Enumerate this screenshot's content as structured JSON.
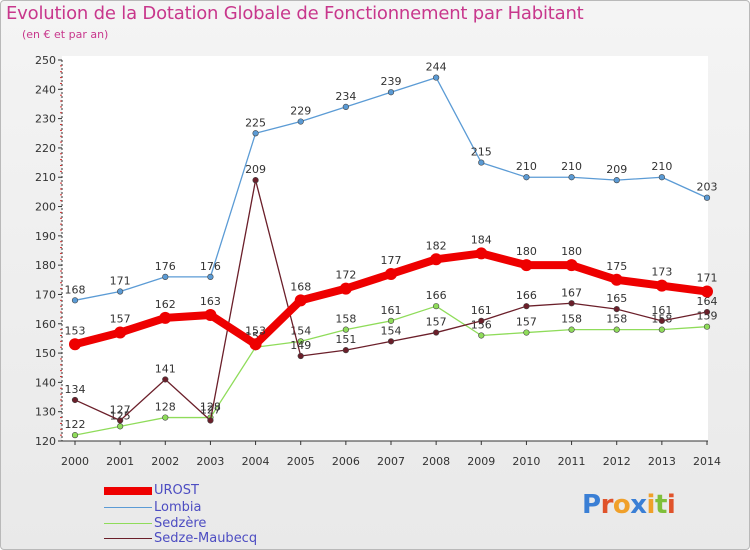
{
  "header": {
    "title": "Evolution de la Dotation Globale de Fonctionnement par Habitant",
    "subtitle": "(en € et par an)"
  },
  "logo": {
    "text": "Proxiti",
    "letter_colors": [
      "#3a7fd5",
      "#e0532b",
      "#f0a02a",
      "#3a7fd5",
      "#f0a02a",
      "#7fbf3a",
      "#e0532b"
    ]
  },
  "chart_data": {
    "type": "line",
    "x": [
      "2000",
      "2001",
      "2002",
      "2003",
      "2004",
      "2005",
      "2006",
      "2007",
      "2008",
      "2009",
      "2010",
      "2011",
      "2012",
      "2013",
      "2014"
    ],
    "ylim": [
      120,
      250
    ],
    "yticks": [
      120,
      130,
      140,
      150,
      160,
      170,
      180,
      190,
      200,
      210,
      220,
      230,
      240,
      250
    ],
    "grid": false,
    "legend_position": "bottom-left",
    "series": [
      {
        "name": "Lombia",
        "color": "#5b9bd5",
        "values": [
          168,
          171,
          176,
          176,
          225,
          229,
          234,
          239,
          244,
          215,
          210,
          210,
          209,
          210,
          203
        ],
        "labels": [
          "168",
          "171",
          "176",
          "176",
          "225",
          "229",
          "234",
          "239",
          "244",
          "215",
          "210",
          "210",
          "209",
          "210",
          "203"
        ]
      },
      {
        "name": "Sedzère",
        "color": "#8fdc5a",
        "values": [
          122,
          125,
          128,
          128,
          152,
          154,
          158,
          161,
          166,
          156,
          157,
          158,
          158,
          158,
          159
        ],
        "labels": [
          "122",
          "125",
          "128",
          "128",
          "152",
          "154",
          "158",
          "161",
          "166",
          "156",
          "157",
          "158",
          "158",
          "158",
          "159"
        ]
      },
      {
        "name": "Sedze-Maubecq",
        "color": "#6b1f2a",
        "values": [
          134,
          127,
          141,
          127,
          209,
          149,
          151,
          154,
          157,
          161,
          166,
          167,
          165,
          161,
          164
        ],
        "labels": [
          "134",
          "127",
          "141",
          "127",
          "209",
          "149",
          "151",
          "154",
          "157",
          "161",
          "166",
          "167",
          "165",
          "161",
          "164"
        ]
      },
      {
        "name": "UROST",
        "color": "#ee0000",
        "values": [
          153,
          157,
          162,
          163,
          153,
          168,
          172,
          177,
          182,
          184,
          180,
          180,
          175,
          173,
          171
        ],
        "labels": [
          "153",
          "157",
          "162",
          "163",
          "153",
          "168",
          "172",
          "177",
          "182",
          "184",
          "180",
          "180",
          "175",
          "173",
          "171"
        ]
      }
    ]
  },
  "legend": [
    {
      "name": "UROST",
      "color": "#ee0000",
      "thickness": "thick"
    },
    {
      "name": "Lombia",
      "color": "#5b9bd5",
      "thickness": "thin"
    },
    {
      "name": "Sedzère",
      "color": "#8fdc5a",
      "thickness": "thin"
    },
    {
      "name": "Sedze-Maubecq",
      "color": "#6b1f2a",
      "thickness": "thin"
    }
  ]
}
